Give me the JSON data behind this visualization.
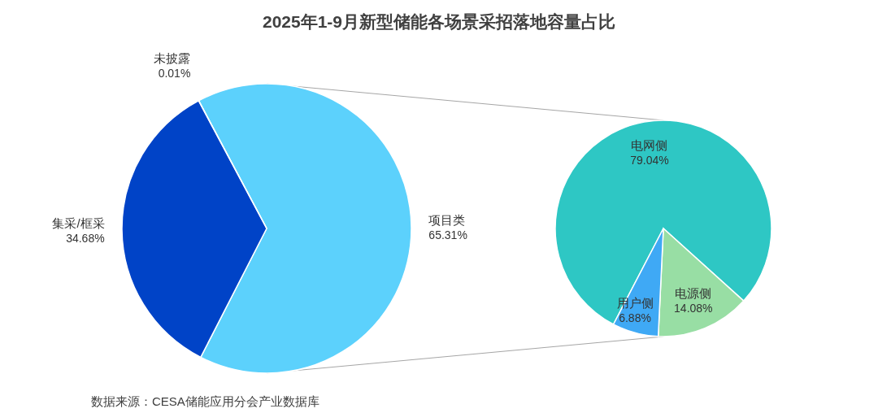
{
  "chart_data": [
    {
      "type": "pie",
      "title": "2025年1-9月新型储能各场景采招落地容量占比",
      "categories": [
        "项目类",
        "集采/框采",
        "未披露"
      ],
      "values": [
        65.31,
        34.68,
        0.01
      ],
      "colors": [
        "#5cd1fc",
        "#0043c7",
        "#a9a9a9"
      ],
      "value_labels": [
        "65.31%",
        "34.68%",
        "0.01%"
      ],
      "annotations": [
        "数据来源：CESA储能应用分会产业数据库"
      ]
    },
    {
      "type": "pie",
      "categories": [
        "电网侧",
        "电源侧",
        "用户侧"
      ],
      "values": [
        79.04,
        14.08,
        6.88
      ],
      "colors": [
        "#2ec7c4",
        "#98dea4",
        "#3fa9f5"
      ],
      "value_labels": [
        "79.04%",
        "14.08%",
        "6.88%"
      ]
    }
  ]
}
